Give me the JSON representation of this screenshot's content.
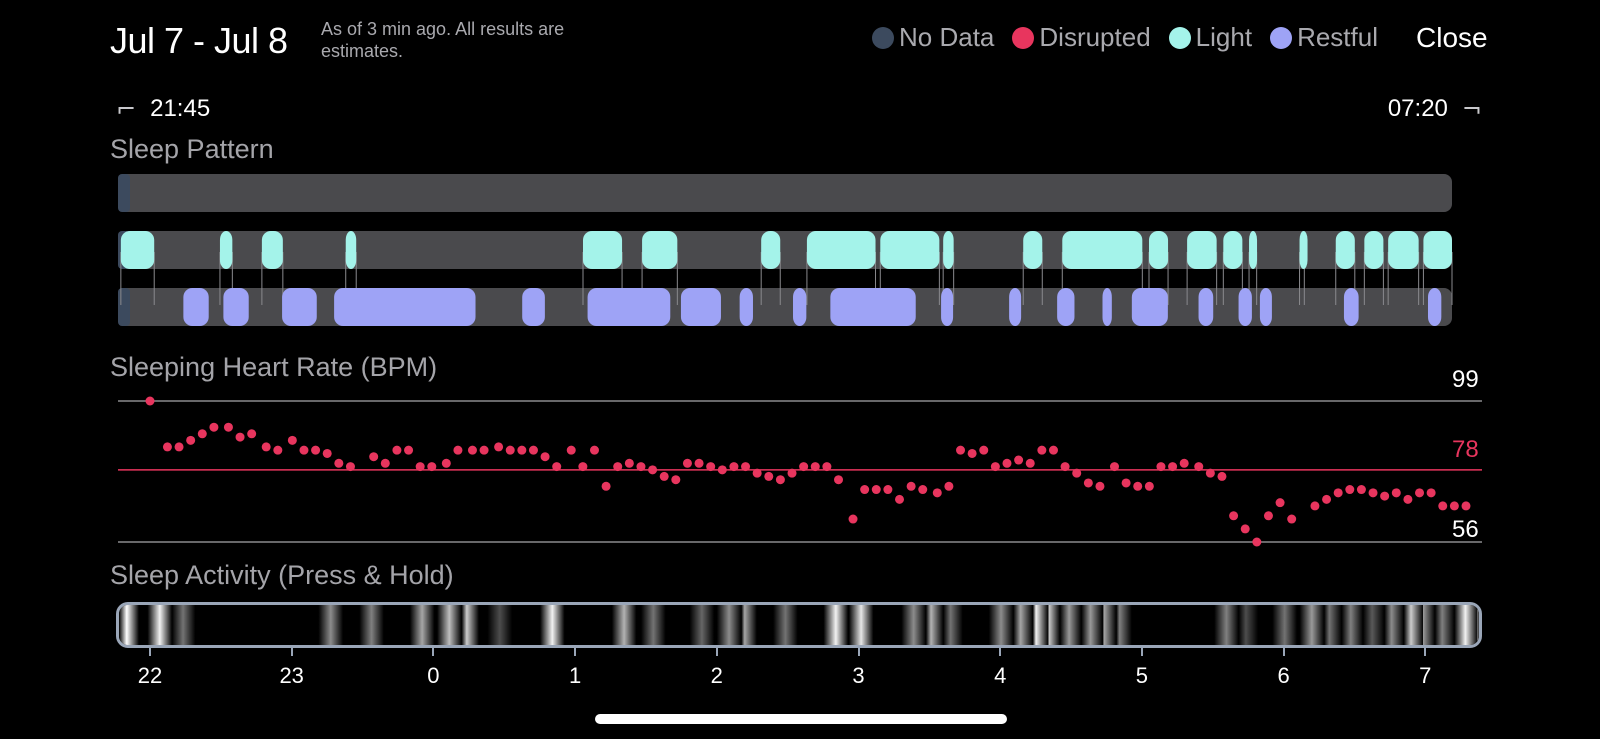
{
  "header": {
    "date_range": "Jul 7 - Jul 8",
    "as_of": "As of 3 min ago. All results are estimates.",
    "close_label": "Close"
  },
  "legend": [
    {
      "label": "No Data",
      "color": "#3c4a5e"
    },
    {
      "label": "Disrupted",
      "color": "#e8355e"
    },
    {
      "label": "Light",
      "color": "#a4f3ea"
    },
    {
      "label": "Restful",
      "color": "#9ea3f6"
    }
  ],
  "time_range": {
    "start": "21:45",
    "end": "07:20",
    "bracket_start": "⌐",
    "bracket_end": "¬"
  },
  "sections": {
    "sleep_pattern": "Sleep Pattern",
    "heart_rate": "Sleeping Heart Rate (BPM)",
    "activity": "Sleep Activity (Press & Hold)"
  },
  "sleep_pattern": {
    "light": [
      [
        0.03,
        0.38
      ],
      [
        1.07,
        1.2
      ],
      [
        1.51,
        1.73
      ],
      [
        2.39,
        2.5
      ],
      [
        4.88,
        5.29
      ],
      [
        5.5,
        5.87
      ],
      [
        6.75,
        6.95
      ],
      [
        7.23,
        7.95
      ],
      [
        8.0,
        8.62
      ],
      [
        8.66,
        8.77
      ],
      [
        9.5,
        9.7
      ],
      [
        9.91,
        10.75
      ],
      [
        10.82,
        11.02
      ],
      [
        11.22,
        11.53
      ],
      [
        11.6,
        11.8
      ],
      [
        11.87,
        11.95
      ],
      [
        12.4,
        12.45
      ],
      [
        12.78,
        12.98
      ],
      [
        13.08,
        13.28
      ],
      [
        13.33,
        13.65
      ],
      [
        13.7,
        14.0
      ]
    ],
    "restful": [
      [
        0.49,
        0.68
      ],
      [
        0.79,
        0.98
      ],
      [
        1.23,
        1.49
      ],
      [
        1.62,
        2.68
      ],
      [
        3.03,
        3.2
      ],
      [
        3.52,
        4.14
      ],
      [
        4.22,
        4.52
      ],
      [
        4.66,
        4.76
      ],
      [
        5.06,
        5.16
      ],
      [
        5.34,
        5.98
      ],
      [
        6.17,
        6.26
      ],
      [
        6.68,
        6.77
      ],
      [
        7.04,
        7.17
      ],
      [
        7.38,
        7.45
      ],
      [
        7.6,
        7.87
      ],
      [
        8.1,
        8.21
      ],
      [
        8.4,
        8.5
      ],
      [
        8.56,
        8.65
      ],
      [
        9.19,
        9.3
      ],
      [
        9.82,
        9.92
      ]
    ]
  },
  "heart_rate": {
    "max": "99",
    "avg": "78",
    "min": "56",
    "max_value": 99,
    "avg_value": 78,
    "min_value": 56,
    "line_color": "#e8355e",
    "points": [
      [
        0.2,
        99
      ],
      [
        0.32,
        85
      ],
      [
        0.4,
        85
      ],
      [
        0.48,
        87
      ],
      [
        0.56,
        89
      ],
      [
        0.64,
        91
      ],
      [
        0.74,
        91
      ],
      [
        0.82,
        88
      ],
      [
        0.9,
        89
      ],
      [
        1.0,
        85
      ],
      [
        1.08,
        84
      ],
      [
        1.18,
        87
      ],
      [
        1.26,
        84
      ],
      [
        1.34,
        84
      ],
      [
        1.42,
        83
      ],
      [
        1.5,
        80
      ],
      [
        1.58,
        79
      ],
      [
        1.74,
        82
      ],
      [
        1.82,
        80
      ],
      [
        1.9,
        84
      ],
      [
        1.98,
        84
      ],
      [
        2.06,
        79
      ],
      [
        2.14,
        79
      ],
      [
        2.24,
        80
      ],
      [
        2.32,
        84
      ],
      [
        2.42,
        84
      ],
      [
        2.5,
        84
      ],
      [
        2.6,
        85
      ],
      [
        2.68,
        84
      ],
      [
        2.76,
        84
      ],
      [
        2.84,
        84
      ],
      [
        2.92,
        82
      ],
      [
        3.0,
        79
      ],
      [
        3.1,
        84
      ],
      [
        3.18,
        79
      ],
      [
        3.26,
        84
      ],
      [
        3.34,
        73
      ],
      [
        3.42,
        79
      ],
      [
        3.5,
        80
      ],
      [
        3.58,
        79
      ],
      [
        3.66,
        78
      ],
      [
        3.74,
        76
      ],
      [
        3.82,
        75
      ],
      [
        3.9,
        80
      ],
      [
        3.98,
        80
      ],
      [
        4.06,
        79
      ],
      [
        4.14,
        78
      ],
      [
        4.22,
        79
      ],
      [
        4.3,
        79
      ],
      [
        4.38,
        77
      ],
      [
        4.46,
        76
      ],
      [
        4.54,
        75
      ],
      [
        4.62,
        77
      ],
      [
        4.7,
        79
      ],
      [
        4.78,
        79
      ],
      [
        4.86,
        79
      ],
      [
        4.94,
        75
      ],
      [
        5.04,
        63
      ],
      [
        5.12,
        72
      ],
      [
        5.2,
        72
      ],
      [
        5.28,
        72
      ],
      [
        5.36,
        69
      ],
      [
        5.44,
        73
      ],
      [
        5.52,
        72
      ],
      [
        5.62,
        71
      ],
      [
        5.7,
        73
      ],
      [
        5.78,
        84
      ],
      [
        5.86,
        83
      ],
      [
        5.94,
        84
      ],
      [
        6.02,
        79
      ],
      [
        6.1,
        80
      ],
      [
        6.18,
        81
      ],
      [
        6.26,
        80
      ],
      [
        6.34,
        84
      ],
      [
        6.42,
        84
      ],
      [
        6.5,
        79
      ],
      [
        6.58,
        77
      ],
      [
        6.66,
        74
      ],
      [
        6.74,
        73
      ],
      [
        6.84,
        79
      ],
      [
        6.92,
        74
      ],
      [
        7.0,
        73
      ],
      [
        7.08,
        73
      ],
      [
        7.16,
        79
      ],
      [
        7.24,
        79
      ],
      [
        7.32,
        80
      ],
      [
        7.42,
        79
      ],
      [
        7.5,
        77
      ],
      [
        7.58,
        76
      ],
      [
        7.66,
        64
      ],
      [
        7.74,
        60
      ],
      [
        7.82,
        56
      ],
      [
        7.9,
        64
      ],
      [
        7.98,
        68
      ],
      [
        8.06,
        63
      ],
      [
        8.22,
        67
      ],
      [
        8.3,
        69
      ],
      [
        8.38,
        71
      ],
      [
        8.46,
        72
      ],
      [
        8.54,
        72
      ],
      [
        8.62,
        71
      ],
      [
        8.7,
        70
      ],
      [
        8.78,
        71
      ],
      [
        8.86,
        69
      ],
      [
        8.94,
        71
      ],
      [
        9.02,
        71
      ],
      [
        9.1,
        67
      ],
      [
        9.18,
        67
      ],
      [
        9.26,
        67
      ]
    ]
  },
  "activity": {
    "peaks": [
      [
        0.08,
        1.0
      ],
      [
        0.42,
        0.95
      ],
      [
        0.66,
        0.45
      ],
      [
        2.18,
        0.55
      ],
      [
        2.6,
        0.5
      ],
      [
        3.12,
        0.65
      ],
      [
        3.4,
        0.75
      ],
      [
        3.58,
        0.8
      ],
      [
        3.92,
        0.3
      ],
      [
        4.46,
        0.95
      ],
      [
        5.2,
        0.7
      ],
      [
        5.5,
        0.45
      ],
      [
        6.0,
        0.4
      ],
      [
        6.28,
        0.55
      ],
      [
        6.44,
        0.65
      ],
      [
        6.86,
        0.45
      ],
      [
        7.38,
        0.95
      ],
      [
        7.64,
        0.9
      ],
      [
        8.18,
        0.55
      ],
      [
        8.36,
        0.7
      ],
      [
        8.56,
        0.45
      ],
      [
        9.08,
        0.55
      ],
      [
        9.28,
        0.65
      ],
      [
        9.44,
        0.95
      ],
      [
        9.56,
        0.85
      ],
      [
        9.78,
        0.6
      ],
      [
        10.0,
        0.6
      ],
      [
        10.14,
        0.65
      ],
      [
        10.3,
        0.5
      ],
      [
        11.4,
        0.5
      ],
      [
        11.6,
        0.3
      ],
      [
        12.0,
        0.45
      ],
      [
        12.28,
        0.6
      ],
      [
        12.46,
        0.45
      ],
      [
        12.68,
        0.5
      ],
      [
        12.9,
        0.35
      ],
      [
        13.1,
        0.55
      ],
      [
        13.3,
        0.8
      ],
      [
        13.42,
        0.6
      ],
      [
        13.62,
        0.5
      ],
      [
        13.86,
        0.95
      ],
      [
        13.95,
        0.8
      ]
    ]
  },
  "axis": {
    "hours": [
      "22",
      "23",
      "0",
      "1",
      "2",
      "3",
      "4",
      "5",
      "6",
      "7"
    ]
  }
}
